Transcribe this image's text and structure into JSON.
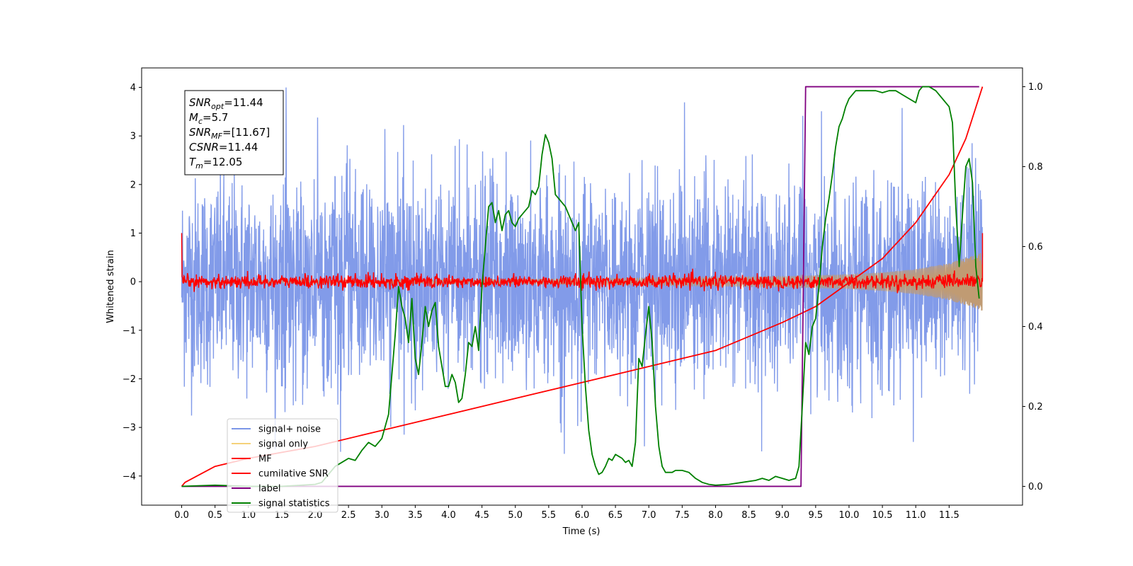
{
  "chart_data": {
    "type": "line",
    "xlabel": "Time (s)",
    "ylabel": "Whitened strain",
    "xlim": [
      -0.6,
      12.6
    ],
    "ylim": [
      -4.6,
      4.4
    ],
    "y2lim": [
      -0.047,
      1.047
    ],
    "x_ticks": [
      0.0,
      0.5,
      1.0,
      1.5,
      2.0,
      2.5,
      3.0,
      3.5,
      4.0,
      4.5,
      5.0,
      5.5,
      6.0,
      6.5,
      7.0,
      7.5,
      8.0,
      8.5,
      9.0,
      9.5,
      10.0,
      10.5,
      11.0,
      11.5
    ],
    "x_tick_labels": [
      "0.0",
      "0.5",
      "1.0",
      "1.5",
      "2.0",
      "2.5",
      "3.0",
      "3.5",
      "4.0",
      "4.5",
      "5.0",
      "5.5",
      "6.0",
      "6.5",
      "7.0",
      "7.5",
      "8.0",
      "8.5",
      "9.0",
      "9.5",
      "10.0",
      "10.5",
      "11.0",
      "11.5"
    ],
    "y_ticks": [
      -4,
      -3,
      -2,
      -1,
      0,
      1,
      2,
      3,
      4
    ],
    "y_tick_labels": [
      "−4",
      "−3",
      "−2",
      "−1",
      "0",
      "1",
      "2",
      "3",
      "4"
    ],
    "y2_ticks": [
      0.0,
      0.2,
      0.4,
      0.6,
      0.8,
      1.0
    ],
    "y2_tick_labels": [
      "0.0",
      "0.2",
      "0.4",
      "0.6",
      "0.8",
      "1.0"
    ],
    "stats_box": {
      "snr_opt": {
        "sym": "SNR",
        "sub": "opt",
        "value": "=11.44"
      },
      "m_c": {
        "sym": "M",
        "sub": "c",
        "value": "=5.7"
      },
      "snr_mf": {
        "sym": "SNR",
        "sub": "MF",
        "value": "=[11.67]"
      },
      "csnr": {
        "sym": "CSNR",
        "sub": "",
        "value": "=11.44"
      },
      "t_m": {
        "sym": "T",
        "sub": "m",
        "value": "=12.05"
      }
    },
    "legend_placement": "lower-left",
    "series": [
      {
        "name": "signal+ noise",
        "color": "#7b96e8",
        "kind": "noise",
        "t_range": [
          0.0,
          12.0
        ],
        "amplitude_std": 1.0,
        "peak": 4.0
      },
      {
        "name": "signal only",
        "color": "#f5d27a",
        "kind": "chirp_envelope",
        "t_range": [
          0.0,
          12.0
        ],
        "envelope": {
          "x": [
            0,
            2,
            4,
            6,
            8,
            9,
            10,
            10.5,
            11,
            11.5,
            12.0
          ],
          "y": [
            0.02,
            0.03,
            0.04,
            0.06,
            0.09,
            0.11,
            0.15,
            0.19,
            0.26,
            0.38,
            0.6
          ]
        }
      },
      {
        "name": "MF",
        "color": "#ff0000",
        "kind": "noise_small",
        "t_range": [
          0.0,
          12.0
        ],
        "amplitude_std": 0.07,
        "start_value": 1.0,
        "end_value": 1.0
      },
      {
        "name": "cumilative SNR",
        "color": "#ff0000",
        "axis": "right",
        "x": [
          0.0,
          0.05,
          0.5,
          1.0,
          2.0,
          3.0,
          4.0,
          5.0,
          6.0,
          7.0,
          8.0,
          9.0,
          9.5,
          10.0,
          10.5,
          11.0,
          11.5,
          11.75,
          12.0
        ],
        "y": [
          0.0,
          0.01,
          0.05,
          0.07,
          0.1,
          0.14,
          0.18,
          0.22,
          0.26,
          0.3,
          0.34,
          0.41,
          0.45,
          0.51,
          0.57,
          0.66,
          0.78,
          0.87,
          1.0
        ]
      },
      {
        "name": "label",
        "color": "#800080",
        "axis": "right",
        "x": [
          0.0,
          9.28,
          9.35,
          11.95
        ],
        "y": [
          0.0,
          0.0,
          1.0,
          1.0
        ]
      },
      {
        "name": "signal statistics",
        "color": "#008000",
        "axis": "right",
        "x": [
          0.0,
          0.5,
          1.0,
          1.5,
          2.0,
          2.1,
          2.2,
          2.3,
          2.4,
          2.5,
          2.6,
          2.7,
          2.8,
          2.9,
          3.0,
          3.1,
          3.2,
          3.25,
          3.3,
          3.35,
          3.4,
          3.45,
          3.5,
          3.55,
          3.6,
          3.65,
          3.7,
          3.75,
          3.8,
          3.85,
          3.9,
          3.95,
          4.0,
          4.05,
          4.1,
          4.15,
          4.2,
          4.25,
          4.3,
          4.35,
          4.4,
          4.45,
          4.5,
          4.55,
          4.6,
          4.65,
          4.7,
          4.75,
          4.8,
          4.85,
          4.9,
          4.95,
          5.0,
          5.05,
          5.1,
          5.15,
          5.2,
          5.25,
          5.3,
          5.35,
          5.4,
          5.45,
          5.5,
          5.55,
          5.6,
          5.65,
          5.7,
          5.75,
          5.8,
          5.85,
          5.9,
          5.95,
          6.0,
          6.05,
          6.1,
          6.15,
          6.2,
          6.25,
          6.3,
          6.35,
          6.4,
          6.45,
          6.5,
          6.55,
          6.6,
          6.65,
          6.7,
          6.75,
          6.8,
          6.85,
          6.9,
          6.95,
          7.0,
          7.05,
          7.1,
          7.15,
          7.2,
          7.25,
          7.3,
          7.35,
          7.4,
          7.5,
          7.6,
          7.7,
          7.8,
          7.9,
          8.0,
          8.2,
          8.4,
          8.6,
          8.7,
          8.8,
          8.9,
          9.0,
          9.1,
          9.2,
          9.25,
          9.3,
          9.35,
          9.4,
          9.45,
          9.5,
          9.55,
          9.6,
          9.65,
          9.7,
          9.75,
          9.8,
          9.85,
          9.9,
          9.95,
          10.0,
          10.05,
          10.1,
          10.15,
          10.2,
          10.3,
          10.4,
          10.5,
          10.6,
          10.7,
          10.8,
          10.9,
          11.0,
          11.05,
          11.1,
          11.15,
          11.2,
          11.3,
          11.4,
          11.5,
          11.55,
          11.6,
          11.65,
          11.7,
          11.75,
          11.8,
          11.85,
          11.9,
          11.95
        ],
        "y": [
          0.0,
          0.003,
          0.0,
          0.0,
          0.005,
          0.01,
          0.03,
          0.05,
          0.06,
          0.07,
          0.065,
          0.09,
          0.11,
          0.1,
          0.12,
          0.18,
          0.38,
          0.5,
          0.45,
          0.42,
          0.36,
          0.47,
          0.32,
          0.28,
          0.36,
          0.45,
          0.4,
          0.44,
          0.46,
          0.35,
          0.3,
          0.25,
          0.25,
          0.28,
          0.26,
          0.21,
          0.22,
          0.28,
          0.36,
          0.35,
          0.4,
          0.34,
          0.5,
          0.6,
          0.7,
          0.71,
          0.66,
          0.69,
          0.64,
          0.68,
          0.69,
          0.66,
          0.65,
          0.67,
          0.68,
          0.69,
          0.7,
          0.74,
          0.73,
          0.75,
          0.83,
          0.88,
          0.86,
          0.82,
          0.73,
          0.72,
          0.71,
          0.7,
          0.68,
          0.66,
          0.64,
          0.66,
          0.4,
          0.25,
          0.14,
          0.08,
          0.05,
          0.03,
          0.035,
          0.05,
          0.07,
          0.065,
          0.08,
          0.075,
          0.07,
          0.06,
          0.065,
          0.05,
          0.11,
          0.32,
          0.3,
          0.38,
          0.45,
          0.36,
          0.2,
          0.1,
          0.05,
          0.035,
          0.035,
          0.035,
          0.04,
          0.04,
          0.035,
          0.02,
          0.01,
          0.005,
          0.003,
          0.005,
          0.01,
          0.015,
          0.02,
          0.015,
          0.025,
          0.02,
          0.015,
          0.02,
          0.05,
          0.2,
          0.36,
          0.33,
          0.4,
          0.42,
          0.5,
          0.6,
          0.67,
          0.72,
          0.78,
          0.85,
          0.9,
          0.92,
          0.95,
          0.97,
          0.98,
          0.99,
          0.99,
          0.99,
          0.99,
          0.99,
          0.985,
          0.99,
          0.99,
          0.98,
          0.97,
          0.96,
          0.99,
          1.0,
          1.0,
          1.0,
          0.99,
          0.97,
          0.95,
          0.91,
          0.7,
          0.55,
          0.68,
          0.8,
          0.82,
          0.76,
          0.55,
          0.47
        ]
      }
    ]
  }
}
